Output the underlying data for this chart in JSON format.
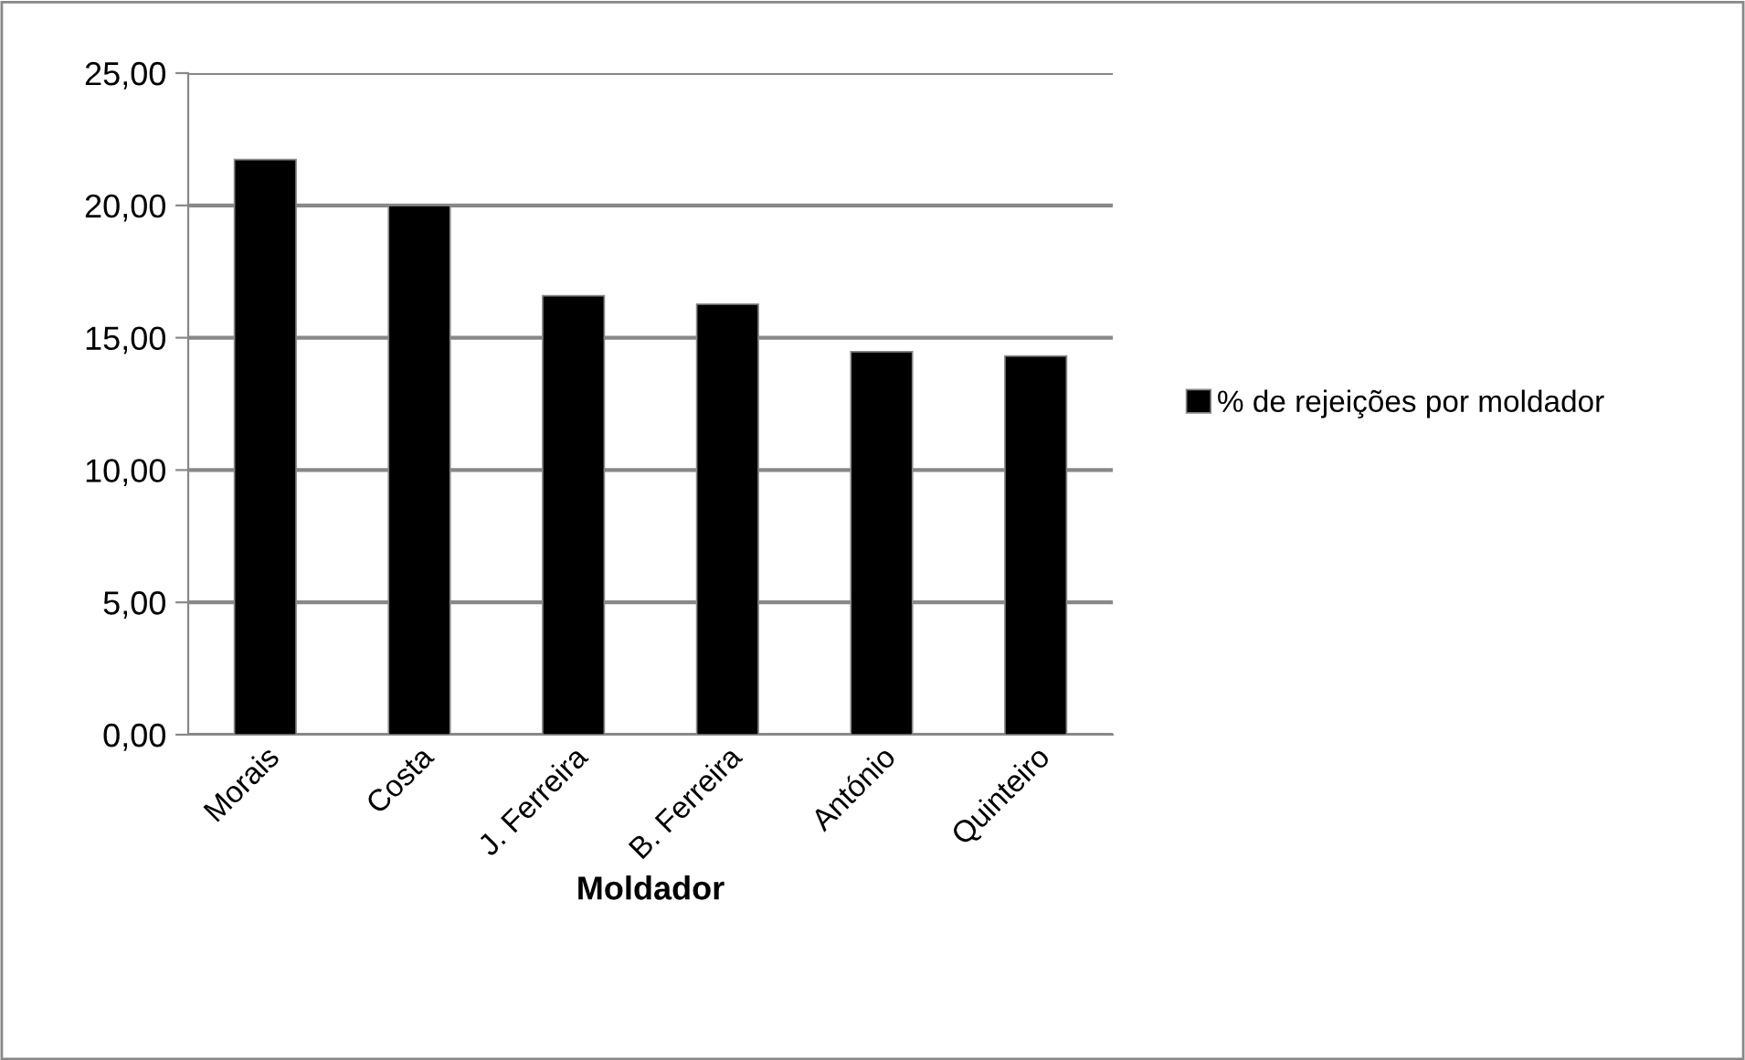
{
  "chart_data": {
    "type": "bar",
    "xlabel": "Moldador",
    "categories": [
      "Morais",
      "Costa",
      "J. Ferreira",
      "B. Ferreira",
      "António",
      "Quinteiro"
    ],
    "series": [
      {
        "name": "% de rejeições por moldador",
        "color": "#000000",
        "values": [
          21.73,
          20.0,
          16.59,
          16.27,
          14.47,
          14.31
        ]
      }
    ],
    "ylim": [
      0,
      25
    ],
    "yticks": [
      {
        "value": 0,
        "label": "0,00"
      },
      {
        "value": 5,
        "label": "5,00"
      },
      {
        "value": 10,
        "label": "10,00"
      },
      {
        "value": 15,
        "label": "15,00"
      },
      {
        "value": 20,
        "label": "20,00"
      },
      {
        "value": 25,
        "label": "25,00"
      }
    ],
    "grid": "y",
    "legend": "right"
  }
}
